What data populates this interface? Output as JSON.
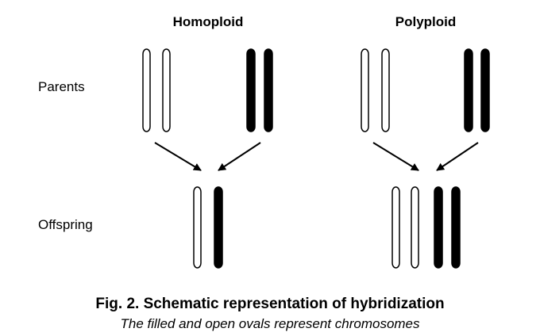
{
  "headings": {
    "homoploid": "Homoploid",
    "polyploid": "Polyploid"
  },
  "rows": {
    "parents": "Parents",
    "offspring": "Offspring"
  },
  "caption": {
    "title": "Fig. 2. Schematic representation of hybridization",
    "subtitle": "The filled and open ovals represent chromosomes"
  },
  "colors": {
    "ink": "#000000",
    "open_fill": "#ffffff"
  }
}
